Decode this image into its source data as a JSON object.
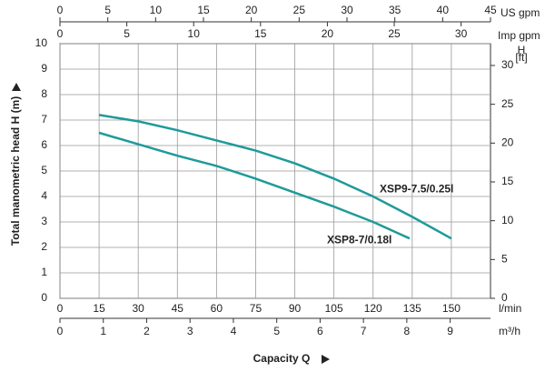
{
  "chart_data": {
    "type": "line",
    "ylabel": "Total manometric head H (m)",
    "xtitle": "Capacity Q",
    "xlabel": "l/min",
    "xlim": [
      0,
      165
    ],
    "xticks": [
      0,
      15,
      30,
      45,
      60,
      75,
      90,
      105,
      120,
      135,
      150
    ],
    "ylim": [
      0,
      10
    ],
    "yticks": [
      0,
      1,
      2,
      3,
      4,
      5,
      6,
      7,
      8,
      9,
      10
    ],
    "grid": true,
    "x2": {
      "label": "m³/h",
      "lim": [
        0,
        9.93
      ],
      "ticks": [
        0,
        1,
        2,
        3,
        4,
        5,
        6,
        7,
        8,
        9
      ]
    },
    "x3": {
      "label": "US gpm",
      "lim": [
        0,
        45
      ],
      "ticks": [
        0,
        5,
        10,
        15,
        20,
        25,
        30,
        35,
        40,
        45
      ]
    },
    "x4": {
      "label": "Imp gpm",
      "lim": [
        0,
        32.2
      ],
      "ticks": [
        0,
        5,
        10,
        15,
        20,
        25,
        30
      ]
    },
    "y2": {
      "label": "H",
      "unit": "[ft]",
      "lim": [
        0,
        32.81
      ],
      "ticks": [
        0,
        5,
        10,
        15,
        20,
        25,
        30
      ]
    },
    "series": [
      {
        "name": "XSP9-7.5/0.25l",
        "color": "#1f9a9a",
        "x": [
          15,
          30,
          45,
          60,
          75,
          90,
          105,
          120,
          135,
          150
        ],
        "values": [
          7.2,
          6.95,
          6.6,
          6.2,
          5.8,
          5.3,
          4.7,
          4.0,
          3.2,
          2.35
        ]
      },
      {
        "name": "XSP8-7/0.18l",
        "color": "#1f9a9a",
        "x": [
          15,
          30,
          45,
          60,
          75,
          90,
          105,
          120,
          134
        ],
        "values": [
          6.5,
          6.05,
          5.6,
          5.2,
          4.7,
          4.15,
          3.6,
          3.0,
          2.35
        ]
      }
    ]
  }
}
